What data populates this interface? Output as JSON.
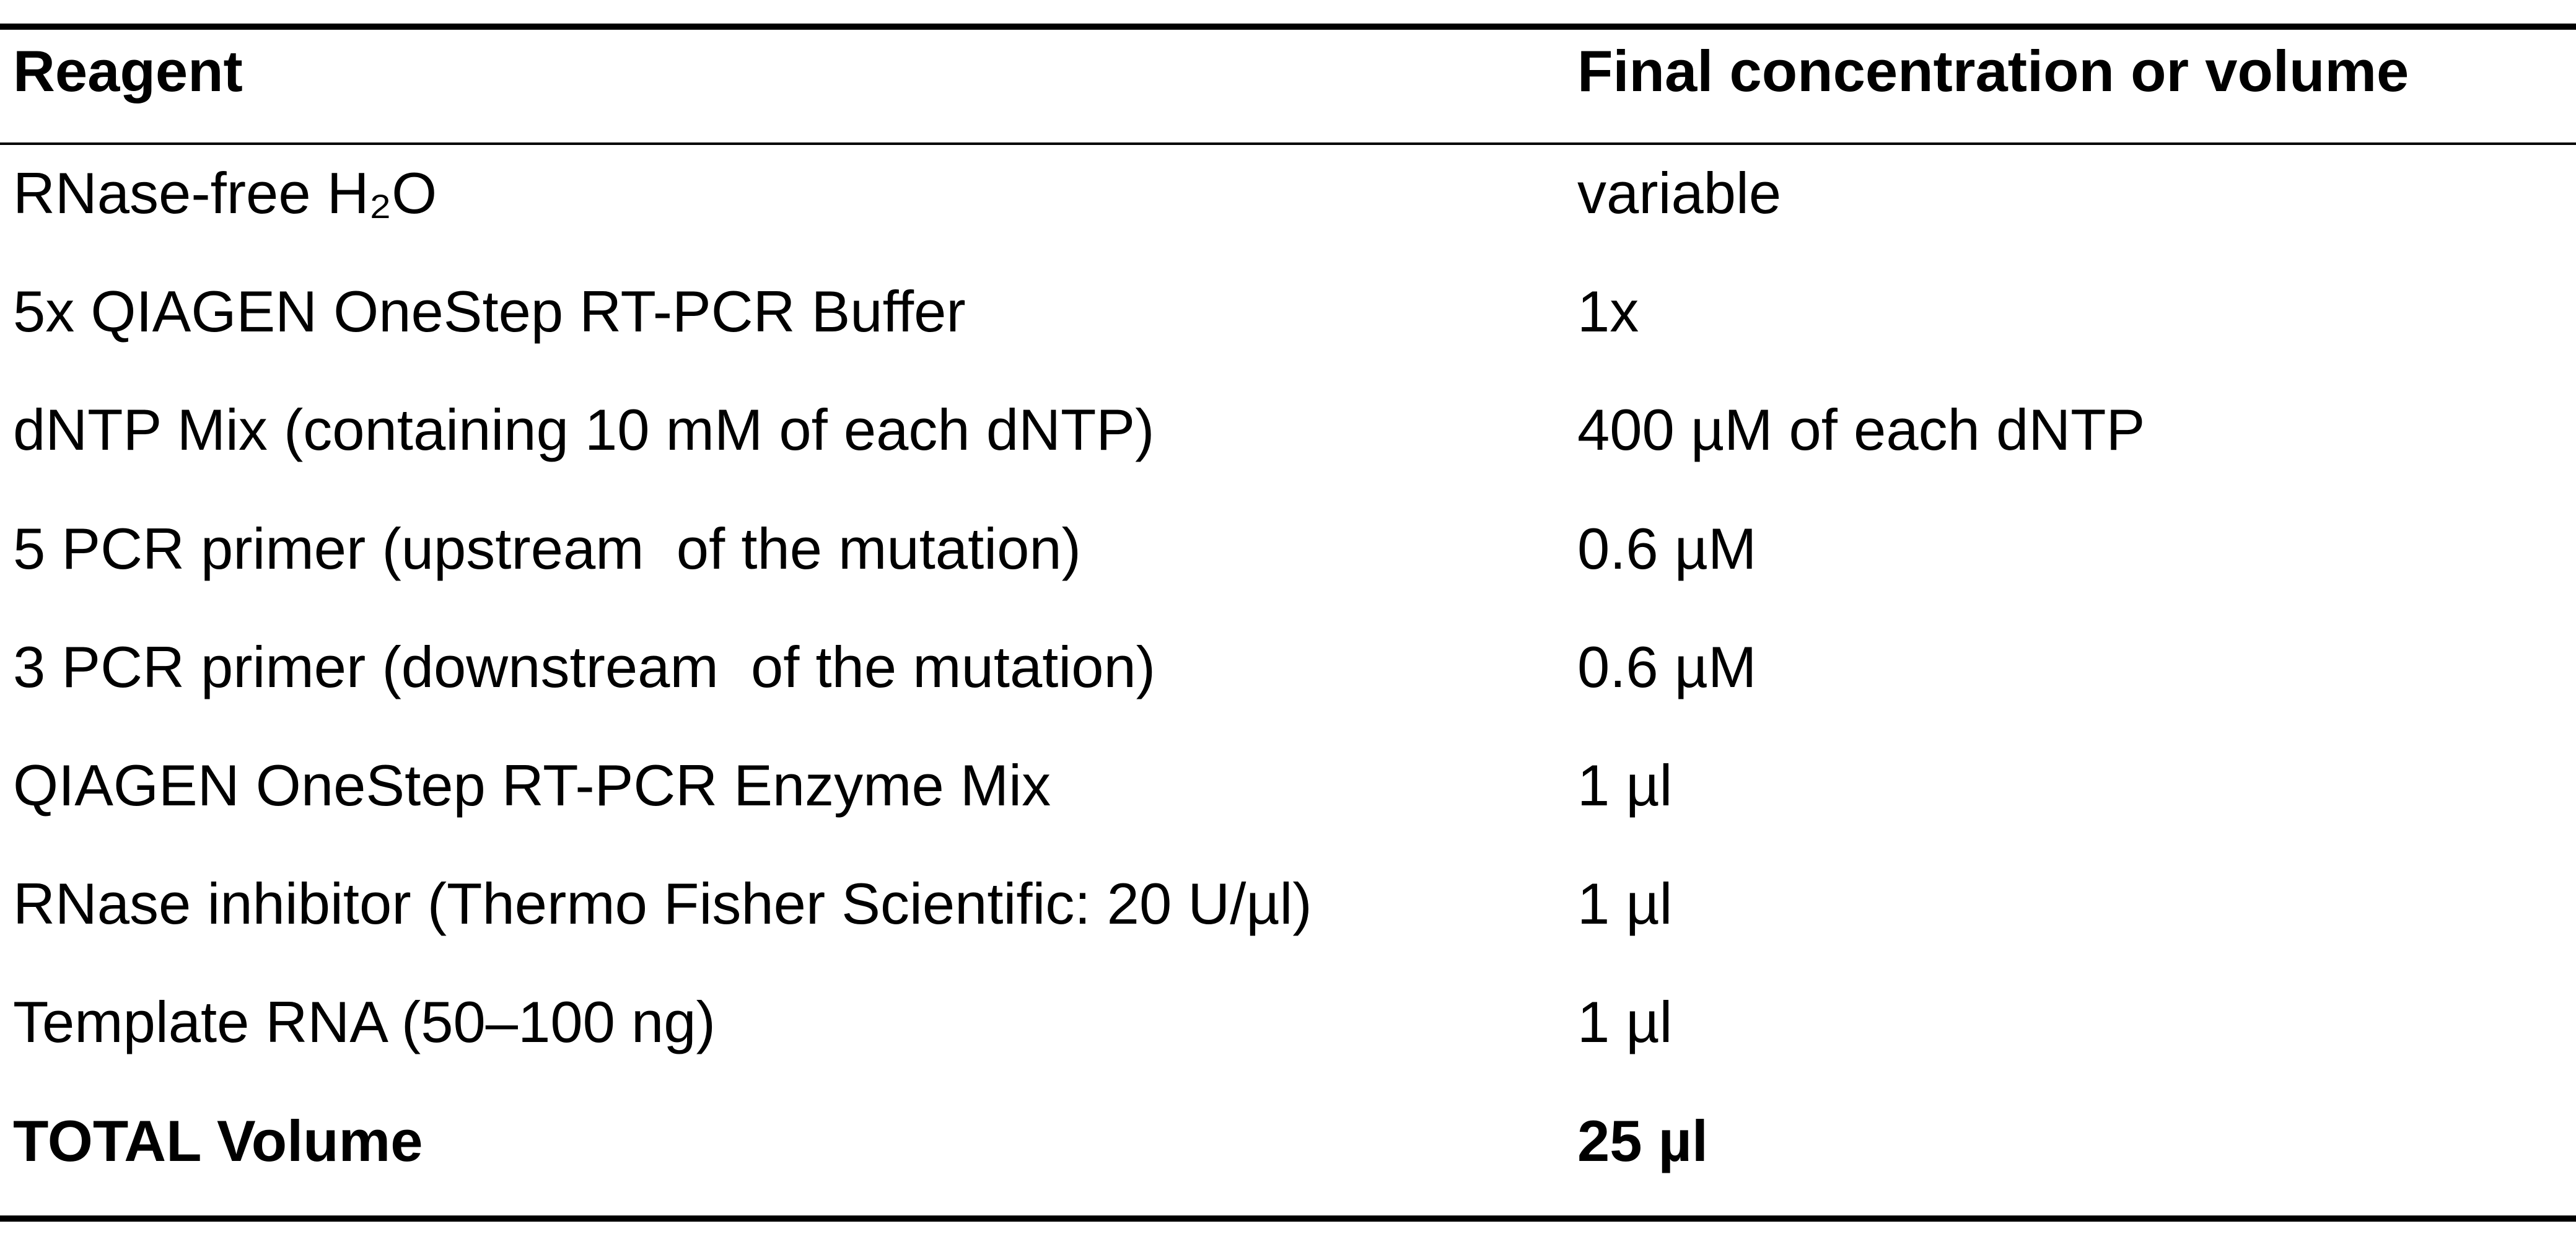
{
  "table": {
    "columns": [
      "Reagent",
      "Final concentration or volume"
    ],
    "rows": [
      [
        "RNase-free H₂O",
        "variable"
      ],
      [
        "5x QIAGEN OneStep RT-PCR Buffer",
        "1x"
      ],
      [
        "dNTP Mix (containing 10 mM of each dNTP)",
        "400 µM of each dNTP"
      ],
      [
        "5 PCR primer (upstream  of the mutation)",
        "0.6 µM"
      ],
      [
        "3 PCR primer (downstream  of the mutation)",
        "0.6 µM"
      ],
      [
        "QIAGEN OneStep RT-PCR Enzyme Mix",
        "1 µl"
      ],
      [
        "RNase inhibitor (Thermo Fisher Scientific: 20 U/µl)",
        "1 µl"
      ],
      [
        "Template RNA (50–100 ng)",
        "1 µl"
      ],
      [
        "TOTAL Volume",
        "25 µl"
      ]
    ]
  }
}
